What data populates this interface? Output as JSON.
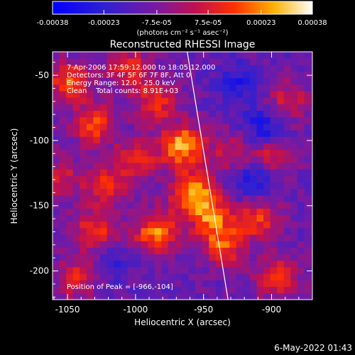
{
  "chart_data": {
    "type": "heatmap",
    "title": "Reconstructed RHESSI Image",
    "xlabel": "Heliocentric X (arcsec)",
    "ylabel": "Heliocentric Y (arcsec)",
    "xlim": [
      -1061,
      -870
    ],
    "ylim": [
      -222,
      -32
    ],
    "x_ticks": [
      -1050,
      -1000,
      -950,
      -900
    ],
    "y_ticks": [
      -50,
      -100,
      -150,
      -200
    ],
    "x_tick_labels": [
      "-1050",
      "-1000",
      "-950",
      "-900"
    ],
    "y_tick_labels": [
      "-50",
      "-100",
      "-150",
      "-200"
    ],
    "colorbar": {
      "range": [
        -0.00038,
        0.00038
      ],
      "tick_values": [
        -0.00038,
        -0.00023,
        -7.5e-05,
        7.5e-05,
        0.00023,
        0.00038
      ],
      "tick_labels": [
        "-0.00038",
        "-0.00023",
        "-7.5e-05",
        "7.5e-05",
        "0.00023",
        "0.00038"
      ],
      "units": "(photons cm⁻² s⁻¹ asec⁻²)",
      "colormap": "blue-purple-red-yellow-white"
    },
    "annotations": [
      "7-Apr-2006 17:59:12.000 to 18:05:12.000",
      "Detectors: 3F 4F 5F 6F 7F 8F, Att 0",
      "Energy Range: 12.0 - 25.0 keV",
      "Clean    Total counts: 8.91E+03",
      "Position of Peak = [-966,-104]"
    ],
    "limb_line": {
      "x": [
        -962,
        -932
      ],
      "y": [
        -32,
        -222
      ]
    },
    "peak": {
      "x": -966,
      "y": -104
    },
    "emission_sources": [
      {
        "x": -1048,
        "y": -55,
        "value": 0.00028
      },
      {
        "x": -1030,
        "y": -88,
        "value": 0.00026
      },
      {
        "x": -1005,
        "y": -45,
        "value": 0.00022
      },
      {
        "x": -985,
        "y": -70,
        "value": 0.00024
      },
      {
        "x": -966,
        "y": -104,
        "value": 0.00038
      },
      {
        "x": -958,
        "y": -140,
        "value": 0.00036
      },
      {
        "x": -945,
        "y": -158,
        "value": 0.0003
      },
      {
        "x": -1022,
        "y": -135,
        "value": 0.00024
      },
      {
        "x": -1000,
        "y": -115,
        "value": 0.00022
      },
      {
        "x": -985,
        "y": -170,
        "value": 0.00033
      },
      {
        "x": -1030,
        "y": -170,
        "value": 0.00025
      },
      {
        "x": -1042,
        "y": -205,
        "value": 0.00022
      },
      {
        "x": -935,
        "y": -180,
        "value": 0.00026
      },
      {
        "x": -910,
        "y": -160,
        "value": 0.00024
      },
      {
        "x": -895,
        "y": -205,
        "value": 0.00026
      },
      {
        "x": -900,
        "y": -110,
        "value": 0.00021
      },
      {
        "x": -888,
        "y": -70,
        "value": 0.00018
      },
      {
        "x": -930,
        "y": -110,
        "value": 0.00017
      },
      {
        "x": -1058,
        "y": -130,
        "value": 0.0002
      }
    ],
    "negative_sources": [
      {
        "x": -905,
        "y": -90,
        "value": -0.00022
      },
      {
        "x": -915,
        "y": -130,
        "value": -0.00018
      },
      {
        "x": -925,
        "y": -55,
        "value": -0.00014
      },
      {
        "x": -1020,
        "y": -195,
        "value": -0.00012
      }
    ]
  },
  "footer": {
    "date": "6-May-2022 01:43"
  }
}
